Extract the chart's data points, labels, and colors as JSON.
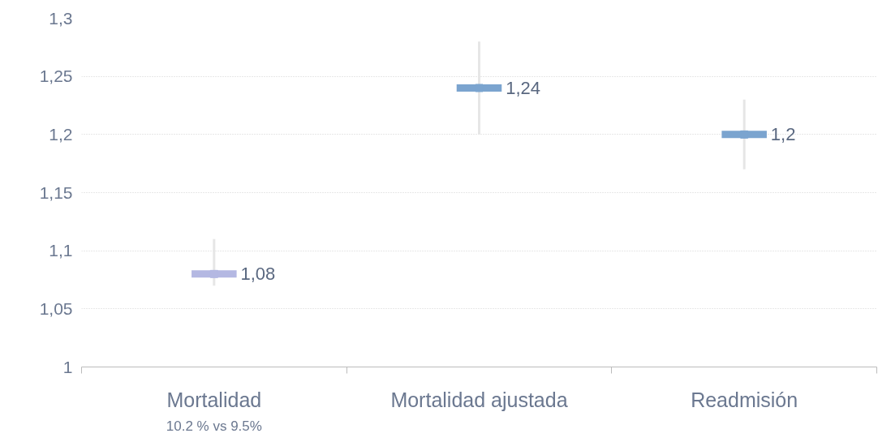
{
  "chart_data": {
    "type": "scatter",
    "categories": [
      "Mortalidad",
      "Mortalidad ajustada",
      "Readmisión"
    ],
    "values": [
      1.08,
      1.24,
      1.2
    ],
    "colors": [
      "#b4b8e2",
      "#7ba4cf",
      "#7ba4cf"
    ],
    "errors": [
      [
        1.07,
        1.11
      ],
      [
        1.2,
        1.28
      ],
      [
        1.17,
        1.23
      ]
    ],
    "value_labels": [
      "1,08",
      "1,24",
      "1,2"
    ],
    "ylim": [
      1,
      1.3
    ],
    "yticks": [
      {
        "value": 1,
        "label": "1"
      },
      {
        "value": 1.05,
        "label": "1,05"
      },
      {
        "value": 1.1,
        "label": "1,1"
      },
      {
        "value": 1.15,
        "label": "1,15"
      },
      {
        "value": 1.2,
        "label": "1,2"
      },
      {
        "value": 1.25,
        "label": "1,25"
      },
      {
        "value": 1.3,
        "label": "1,3"
      }
    ],
    "grid": "y",
    "annotations": [
      "10.2 % vs 9.5%"
    ]
  }
}
